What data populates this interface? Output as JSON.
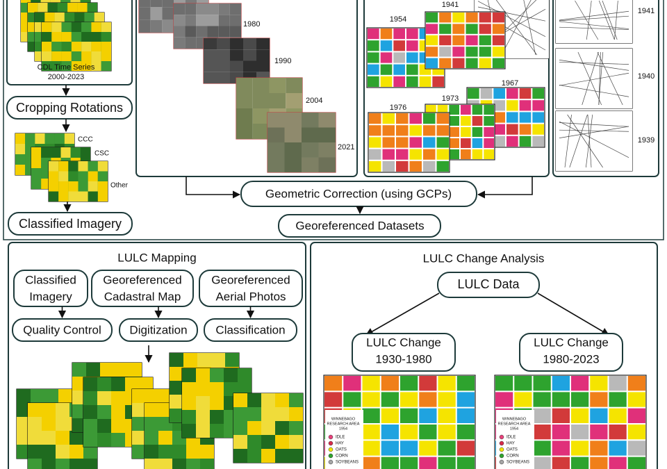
{
  "cdl": {
    "caption": [
      "CDL Time Series",
      "2000-2023"
    ],
    "rotations": "Cropping Rotations",
    "rotation_types": [
      "CCC",
      "CSC",
      "Other"
    ],
    "output": "Classified Imagery"
  },
  "aerial_photos": {
    "years": [
      "1980",
      "1990",
      "2004",
      "2021"
    ]
  },
  "digitized_maps": {
    "years": [
      "1954",
      "1941",
      "1967",
      "1973",
      "1976"
    ]
  },
  "cadastral_maps": {
    "years": [
      "1941",
      "1940",
      "1939"
    ]
  },
  "geometric_correction": "Geometric Correction (using GCPs)",
  "georeferenced_datasets": "Georeferenced Datasets",
  "lulc_mapping": {
    "title": "LULC Mapping",
    "inputs": [
      [
        "Classified",
        "Imagery"
      ],
      [
        "Georeferenced",
        "Cadastral Map"
      ],
      [
        "Georeferenced",
        "Aerial Photos"
      ]
    ],
    "steps": [
      "Quality Control",
      "Digitization",
      "Classification"
    ]
  },
  "lulc_change": {
    "title": "LULC Change Analysis",
    "data": "LULC Data",
    "periods": [
      [
        "LULC Change",
        "1930-1980"
      ],
      [
        "LULC Change",
        "1980-2023"
      ]
    ],
    "map_legend": {
      "title": [
        "WINNEBAGO",
        "RESEARCH AREA",
        "1954"
      ],
      "classes": [
        "IDLE",
        "HAY",
        "OATS",
        "CORN",
        "SOYBEANS"
      ]
    }
  }
}
